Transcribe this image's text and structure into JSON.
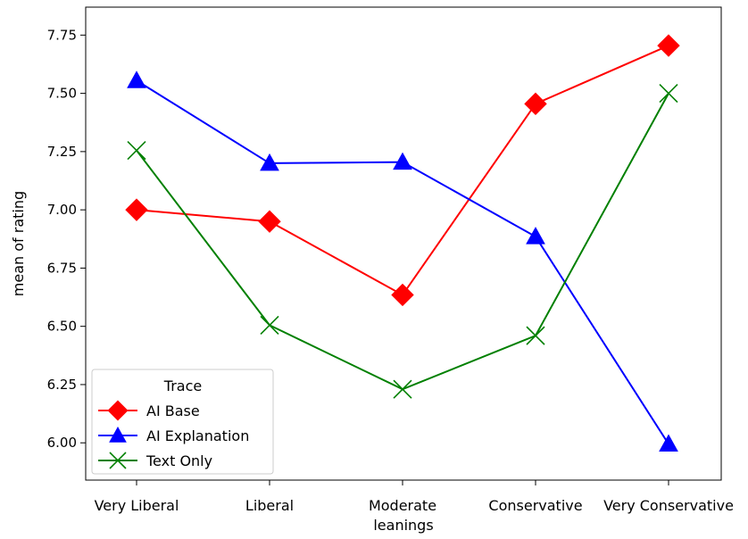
{
  "chart_data": {
    "type": "line",
    "title": "",
    "xlabel": "leanings",
    "ylabel": "mean of rating",
    "categories": [
      "Very Liberal",
      "Liberal",
      "Moderate",
      "Conservative",
      "Very Conservative"
    ],
    "yticks": [
      "6.00",
      "6.25",
      "6.50",
      "6.75",
      "7.00",
      "7.25",
      "7.50",
      "7.75"
    ],
    "ylim": [
      5.84,
      7.87
    ],
    "grid": false,
    "legend": {
      "title": "Trace",
      "placement": "lower-left"
    },
    "series": [
      {
        "name": "AI Base",
        "color": "#ff0000",
        "marker": "diamond",
        "values": [
          7.0,
          6.95,
          6.635,
          7.455,
          7.705
        ]
      },
      {
        "name": "AI Explanation",
        "color": "#0000ff",
        "marker": "triangle",
        "values": [
          7.555,
          7.2,
          7.205,
          6.885,
          5.995
        ]
      },
      {
        "name": "Text Only",
        "color": "#008000",
        "marker": "x",
        "values": [
          7.255,
          6.505,
          6.23,
          6.46,
          7.5
        ]
      }
    ]
  }
}
